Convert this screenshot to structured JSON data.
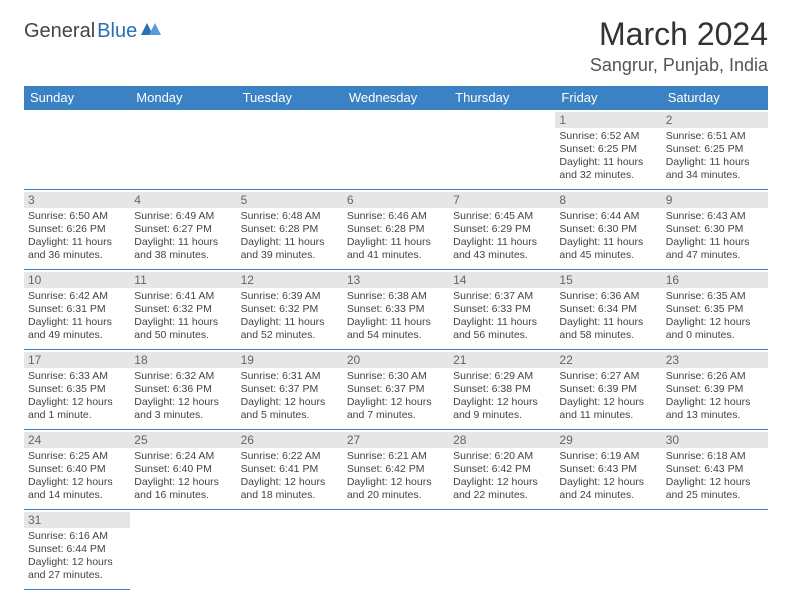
{
  "logo": {
    "text1": "General",
    "text2": "Blue",
    "icon_color": "#2a6fb5"
  },
  "title": "March 2024",
  "location": "Sangrur, Punjab, India",
  "colors": {
    "header_bg": "#3b82c4",
    "header_fg": "#ffffff",
    "daynum_bg": "#e6e6e6",
    "border": "#3b82c4"
  },
  "day_headers": [
    "Sunday",
    "Monday",
    "Tuesday",
    "Wednesday",
    "Thursday",
    "Friday",
    "Saturday"
  ],
  "weeks": [
    [
      null,
      null,
      null,
      null,
      null,
      {
        "n": "1",
        "sr": "6:52 AM",
        "ss": "6:25 PM",
        "dl": "11 hours and 32 minutes."
      },
      {
        "n": "2",
        "sr": "6:51 AM",
        "ss": "6:25 PM",
        "dl": "11 hours and 34 minutes."
      }
    ],
    [
      {
        "n": "3",
        "sr": "6:50 AM",
        "ss": "6:26 PM",
        "dl": "11 hours and 36 minutes."
      },
      {
        "n": "4",
        "sr": "6:49 AM",
        "ss": "6:27 PM",
        "dl": "11 hours and 38 minutes."
      },
      {
        "n": "5",
        "sr": "6:48 AM",
        "ss": "6:28 PM",
        "dl": "11 hours and 39 minutes."
      },
      {
        "n": "6",
        "sr": "6:46 AM",
        "ss": "6:28 PM",
        "dl": "11 hours and 41 minutes."
      },
      {
        "n": "7",
        "sr": "6:45 AM",
        "ss": "6:29 PM",
        "dl": "11 hours and 43 minutes."
      },
      {
        "n": "8",
        "sr": "6:44 AM",
        "ss": "6:30 PM",
        "dl": "11 hours and 45 minutes."
      },
      {
        "n": "9",
        "sr": "6:43 AM",
        "ss": "6:30 PM",
        "dl": "11 hours and 47 minutes."
      }
    ],
    [
      {
        "n": "10",
        "sr": "6:42 AM",
        "ss": "6:31 PM",
        "dl": "11 hours and 49 minutes."
      },
      {
        "n": "11",
        "sr": "6:41 AM",
        "ss": "6:32 PM",
        "dl": "11 hours and 50 minutes."
      },
      {
        "n": "12",
        "sr": "6:39 AM",
        "ss": "6:32 PM",
        "dl": "11 hours and 52 minutes."
      },
      {
        "n": "13",
        "sr": "6:38 AM",
        "ss": "6:33 PM",
        "dl": "11 hours and 54 minutes."
      },
      {
        "n": "14",
        "sr": "6:37 AM",
        "ss": "6:33 PM",
        "dl": "11 hours and 56 minutes."
      },
      {
        "n": "15",
        "sr": "6:36 AM",
        "ss": "6:34 PM",
        "dl": "11 hours and 58 minutes."
      },
      {
        "n": "16",
        "sr": "6:35 AM",
        "ss": "6:35 PM",
        "dl": "12 hours and 0 minutes."
      }
    ],
    [
      {
        "n": "17",
        "sr": "6:33 AM",
        "ss": "6:35 PM",
        "dl": "12 hours and 1 minute."
      },
      {
        "n": "18",
        "sr": "6:32 AM",
        "ss": "6:36 PM",
        "dl": "12 hours and 3 minutes."
      },
      {
        "n": "19",
        "sr": "6:31 AM",
        "ss": "6:37 PM",
        "dl": "12 hours and 5 minutes."
      },
      {
        "n": "20",
        "sr": "6:30 AM",
        "ss": "6:37 PM",
        "dl": "12 hours and 7 minutes."
      },
      {
        "n": "21",
        "sr": "6:29 AM",
        "ss": "6:38 PM",
        "dl": "12 hours and 9 minutes."
      },
      {
        "n": "22",
        "sr": "6:27 AM",
        "ss": "6:39 PM",
        "dl": "12 hours and 11 minutes."
      },
      {
        "n": "23",
        "sr": "6:26 AM",
        "ss": "6:39 PM",
        "dl": "12 hours and 13 minutes."
      }
    ],
    [
      {
        "n": "24",
        "sr": "6:25 AM",
        "ss": "6:40 PM",
        "dl": "12 hours and 14 minutes."
      },
      {
        "n": "25",
        "sr": "6:24 AM",
        "ss": "6:40 PM",
        "dl": "12 hours and 16 minutes."
      },
      {
        "n": "26",
        "sr": "6:22 AM",
        "ss": "6:41 PM",
        "dl": "12 hours and 18 minutes."
      },
      {
        "n": "27",
        "sr": "6:21 AM",
        "ss": "6:42 PM",
        "dl": "12 hours and 20 minutes."
      },
      {
        "n": "28",
        "sr": "6:20 AM",
        "ss": "6:42 PM",
        "dl": "12 hours and 22 minutes."
      },
      {
        "n": "29",
        "sr": "6:19 AM",
        "ss": "6:43 PM",
        "dl": "12 hours and 24 minutes."
      },
      {
        "n": "30",
        "sr": "6:18 AM",
        "ss": "6:43 PM",
        "dl": "12 hours and 25 minutes."
      }
    ],
    [
      {
        "n": "31",
        "sr": "6:16 AM",
        "ss": "6:44 PM",
        "dl": "12 hours and 27 minutes."
      },
      null,
      null,
      null,
      null,
      null,
      null
    ]
  ],
  "labels": {
    "sunrise": "Sunrise:",
    "sunset": "Sunset:",
    "daylight": "Daylight:"
  }
}
